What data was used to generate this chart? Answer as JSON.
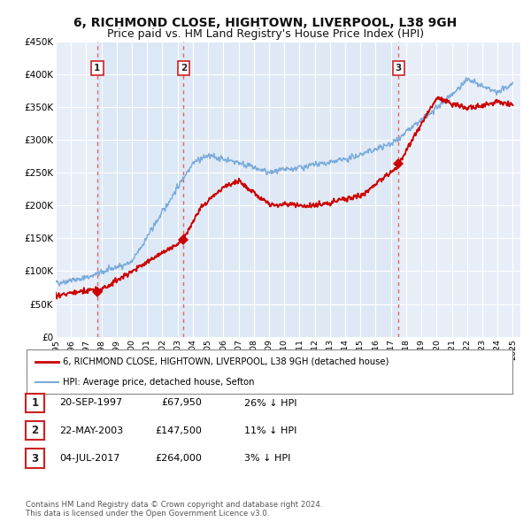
{
  "title": "6, RICHMOND CLOSE, HIGHTOWN, LIVERPOOL, L38 9GH",
  "subtitle": "Price paid vs. HM Land Registry's House Price Index (HPI)",
  "ylim": [
    0,
    450000
  ],
  "yticks": [
    0,
    50000,
    100000,
    150000,
    200000,
    250000,
    300000,
    350000,
    400000,
    450000
  ],
  "ytick_labels": [
    "£0",
    "£50K",
    "£100K",
    "£150K",
    "£200K",
    "£250K",
    "£300K",
    "£350K",
    "£400K",
    "£450K"
  ],
  "price_paid_color": "#cc0000",
  "hpi_color": "#7aabdb",
  "vline_color": "#dd6666",
  "shade_color": "#dce8f5",
  "purchases": [
    {
      "date_num": 1997.72,
      "price": 67950,
      "label": "1"
    },
    {
      "date_num": 2003.39,
      "price": 147500,
      "label": "2"
    },
    {
      "date_num": 2017.5,
      "price": 264000,
      "label": "3"
    }
  ],
  "legend_items": [
    {
      "label": "6, RICHMOND CLOSE, HIGHTOWN, LIVERPOOL, L38 9GH (detached house)",
      "color": "#cc0000",
      "lw": 2
    },
    {
      "label": "HPI: Average price, detached house, Sefton",
      "color": "#7aabdb",
      "lw": 1.5
    }
  ],
  "table_rows": [
    {
      "num": "1",
      "date": "20-SEP-1997",
      "price": "£67,950",
      "hpi": "26% ↓ HPI"
    },
    {
      "num": "2",
      "date": "22-MAY-2003",
      "price": "£147,500",
      "hpi": "11% ↓ HPI"
    },
    {
      "num": "3",
      "date": "04-JUL-2017",
      "price": "£264,000",
      "hpi": "3% ↓ HPI"
    }
  ],
  "footnote": "Contains HM Land Registry data © Crown copyright and database right 2024.\nThis data is licensed under the Open Government Licence v3.0.",
  "bg_color": "#ffffff",
  "plot_bg_color": "#e8eef8",
  "grid_color": "#ffffff",
  "title_fontsize": 10,
  "subtitle_fontsize": 9
}
